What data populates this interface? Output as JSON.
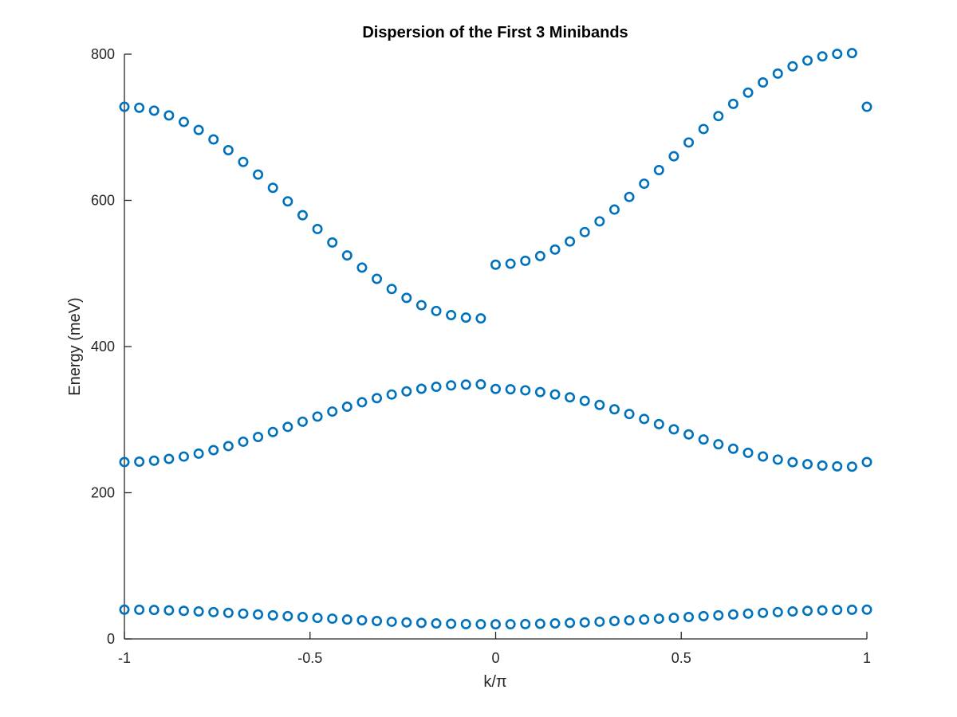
{
  "chart_data": {
    "type": "scatter",
    "title": "Dispersion of the First 3 Minibands",
    "xlabel": "k/π",
    "ylabel": "Energy (meV)",
    "xlim": [
      -1,
      1
    ],
    "ylim": [
      0,
      800
    ],
    "x_ticks": [
      -1,
      -0.5,
      0,
      0.5,
      1
    ],
    "y_ticks": [
      0,
      200,
      400,
      600,
      800
    ],
    "x_tick_labels": [
      "-1",
      "-0.5",
      "0",
      "0.5",
      "1"
    ],
    "y_tick_labels": [
      "0",
      "200",
      "400",
      "600",
      "800"
    ],
    "grid": false,
    "marker": "open-circle",
    "color": "#0072BD",
    "x": [
      -1,
      -0.96,
      -0.92,
      -0.88,
      -0.84,
      -0.8,
      -0.76,
      -0.72,
      -0.68,
      -0.64,
      -0.6,
      -0.56,
      -0.52,
      -0.48,
      -0.44,
      -0.4,
      -0.36,
      -0.32,
      -0.28,
      -0.24,
      -0.2,
      -0.16,
      -0.12,
      -0.08,
      -0.04,
      0,
      0.04,
      0.08,
      0.12,
      0.16,
      0.2,
      0.24,
      0.28,
      0.32,
      0.36,
      0.4,
      0.44,
      0.48,
      0.52,
      0.56,
      0.6,
      0.64,
      0.68,
      0.72,
      0.76,
      0.8,
      0.84,
      0.88,
      0.92,
      0.96,
      1
    ],
    "series": [
      {
        "values": [
          40.0,
          39.9,
          39.6,
          39.1,
          38.4,
          37.6,
          36.7,
          35.7,
          34.6,
          33.5,
          32.3,
          31.2,
          30.0,
          28.8,
          27.7,
          26.5,
          25.5,
          24.5,
          23.5,
          22.6,
          21.9,
          21.2,
          20.7,
          20.3,
          20.1,
          20.0,
          20.1,
          20.3,
          20.7,
          21.2,
          21.9,
          22.6,
          23.5,
          24.5,
          25.5,
          26.5,
          27.7,
          28.8,
          30.0,
          31.2,
          32.3,
          33.5,
          34.6,
          35.7,
          36.7,
          37.6,
          38.4,
          39.1,
          39.6,
          39.9,
          40.0
        ]
      },
      {
        "values": [
          242.0,
          242.5,
          243.9,
          246.3,
          249.5,
          253.5,
          258.3,
          263.8,
          269.8,
          276.3,
          283.1,
          290.1,
          297.2,
          304.2,
          311.1,
          317.7,
          323.8,
          329.4,
          334.4,
          338.7,
          342.2,
          344.9,
          346.8,
          347.9,
          348.3,
          342.0,
          341.5,
          340.1,
          337.7,
          334.5,
          330.5,
          325.7,
          320.2,
          314.2,
          307.7,
          300.9,
          293.9,
          286.8,
          279.8,
          272.9,
          266.3,
          260.2,
          254.6,
          249.6,
          245.3,
          241.8,
          239.1,
          237.2,
          236.1,
          235.7,
          242.0
        ]
      },
      {
        "values": [
          728.0,
          726.7,
          722.7,
          716.2,
          707.3,
          696.3,
          683.4,
          668.7,
          652.6,
          635.3,
          617.2,
          598.6,
          579.7,
          560.8,
          542.4,
          524.7,
          508.0,
          492.6,
          478.7,
          466.6,
          456.6,
          448.7,
          443.0,
          439.6,
          438.5,
          512.0,
          513.3,
          517.3,
          523.8,
          532.7,
          543.7,
          556.6,
          571.3,
          587.4,
          604.7,
          622.8,
          641.4,
          660.3,
          679.2,
          697.6,
          715.3,
          732.0,
          747.4,
          761.3,
          773.4,
          783.4,
          791.3,
          797.0,
          800.4,
          801.5,
          728.0
        ]
      }
    ]
  }
}
